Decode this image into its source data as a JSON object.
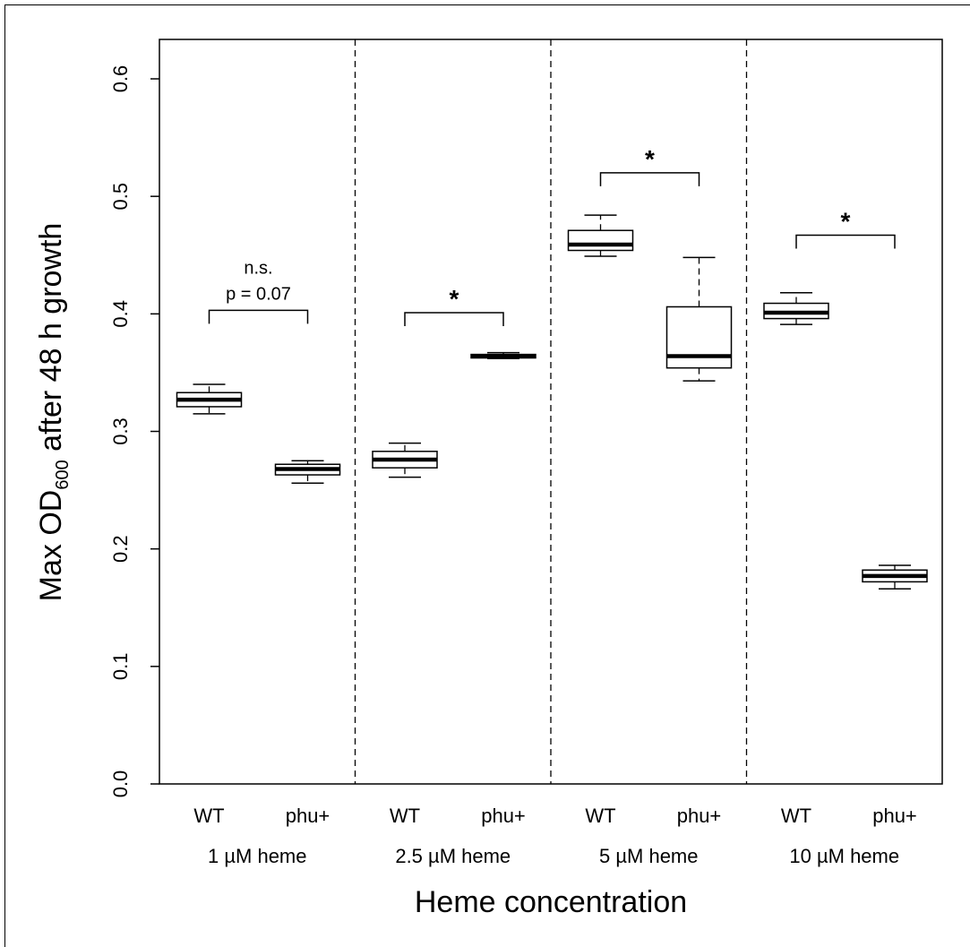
{
  "chart_data": {
    "type": "boxplot",
    "xlabel": "Heme concentration",
    "ylabel": {
      "prefix": "Max OD",
      "subscript": "600",
      "suffix": " after 48 h growth"
    },
    "ylim": [
      0,
      0.6
    ],
    "yticks": [
      "0.0",
      "0.1",
      "0.2",
      "0.3",
      "0.4",
      "0.5",
      "0.6"
    ],
    "grid": false,
    "groups": [
      {
        "label": "1 µM heme",
        "boxes": [
          {
            "label": "WT",
            "min": 0.315,
            "q1": 0.321,
            "median": 0.327,
            "q3": 0.333,
            "max": 0.34
          },
          {
            "label": "phu+",
            "min": 0.256,
            "q1": 0.263,
            "median": 0.268,
            "q3": 0.272,
            "max": 0.275
          }
        ],
        "annotation": {
          "lines": [
            "n.s.",
            "p = 0.07"
          ],
          "level": 0.403
        }
      },
      {
        "label": "2.5 µM heme",
        "boxes": [
          {
            "label": "WT",
            "min": 0.261,
            "q1": 0.269,
            "median": 0.276,
            "q3": 0.283,
            "max": 0.29
          },
          {
            "label": "phu+",
            "min": 0.362,
            "q1": 0.3625,
            "median": 0.364,
            "q3": 0.3655,
            "max": 0.367
          }
        ],
        "annotation": {
          "lines": [
            "*"
          ],
          "level": 0.401
        }
      },
      {
        "label": "5 µM heme",
        "boxes": [
          {
            "label": "WT",
            "min": 0.449,
            "q1": 0.454,
            "median": 0.459,
            "q3": 0.471,
            "max": 0.484
          },
          {
            "label": "phu+",
            "min": 0.343,
            "q1": 0.354,
            "median": 0.364,
            "q3": 0.406,
            "max": 0.448
          }
        ],
        "annotation": {
          "lines": [
            "*"
          ],
          "level": 0.52
        }
      },
      {
        "label": "10 µM heme",
        "boxes": [
          {
            "label": "WT",
            "min": 0.391,
            "q1": 0.396,
            "median": 0.401,
            "q3": 0.409,
            "max": 0.418
          },
          {
            "label": "phu+",
            "min": 0.166,
            "q1": 0.172,
            "median": 0.177,
            "q3": 0.182,
            "max": 0.186
          }
        ],
        "annotation": {
          "lines": [
            "*"
          ],
          "level": 0.467
        }
      }
    ]
  }
}
